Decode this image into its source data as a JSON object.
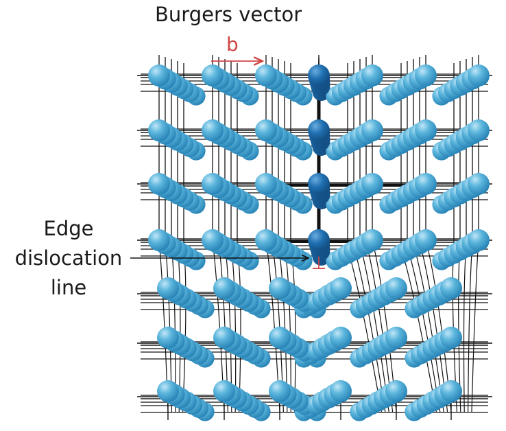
{
  "labels": {
    "burgers_vector": "Burgers vector",
    "burgers_symbol": "b",
    "edge_line_1": "Edge",
    "edge_line_2": "dislocation",
    "edge_line_3": "line",
    "dislocation_symbol": "⊥"
  },
  "colors": {
    "atom": "#5bb5dc",
    "atom_dark": "#2a7fb8",
    "extra_half_plane_atom": "#1f6fb0",
    "lattice_line": "#111111",
    "burgers_arrow": "#d04545",
    "dislocation_symbol": "#d04545",
    "label_text": "#1a1a1a"
  },
  "lattice": {
    "columns_above": 7,
    "columns_below": 6,
    "rows_above": 4,
    "rows_below": 3
  }
}
